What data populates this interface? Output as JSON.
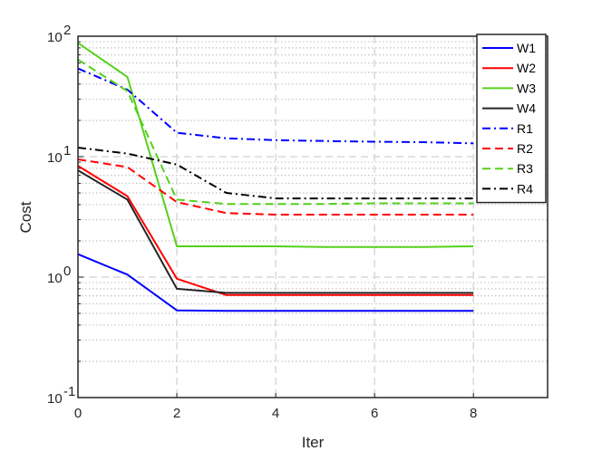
{
  "chart_data": {
    "type": "line",
    "title": "",
    "xlabel": "Iter",
    "ylabel": "Cost",
    "xlim": [
      0,
      9.5
    ],
    "ylim": [
      0.1,
      100
    ],
    "yscale": "log",
    "grid": true,
    "legend_position": "top-right",
    "xticks": [
      0,
      2,
      4,
      6,
      8
    ],
    "xtick_labels": [
      "0",
      "2",
      "4",
      "6",
      "8"
    ],
    "yticks": [
      0.1,
      1,
      10,
      100
    ],
    "ytick_labels": [
      {
        "base": "10",
        "exp": "-1"
      },
      {
        "base": "10",
        "exp": "0"
      },
      {
        "base": "10",
        "exp": "1"
      },
      {
        "base": "10",
        "exp": "2"
      }
    ],
    "x": [
      0,
      1,
      2,
      3,
      4,
      5,
      6,
      7,
      8
    ],
    "series": [
      {
        "name": "W1",
        "color": "#0000ff",
        "style": "solid",
        "values": [
          1.55,
          1.05,
          0.53,
          0.525,
          0.525,
          0.525,
          0.525,
          0.525,
          0.525
        ]
      },
      {
        "name": "W2",
        "color": "#ff0000",
        "style": "solid",
        "values": [
          8.4,
          4.7,
          0.97,
          0.71,
          0.71,
          0.71,
          0.71,
          0.71,
          0.71
        ]
      },
      {
        "name": "W3",
        "color": "#55d01a",
        "style": "solid",
        "values": [
          88,
          46,
          1.8,
          1.8,
          1.8,
          1.78,
          1.78,
          1.78,
          1.8
        ]
      },
      {
        "name": "W4",
        "color": "#262626",
        "style": "solid",
        "values": [
          7.7,
          4.4,
          0.8,
          0.74,
          0.74,
          0.74,
          0.74,
          0.74,
          0.74
        ]
      },
      {
        "name": "R1",
        "color": "#0000ff",
        "style": "dashdot",
        "values": [
          54,
          36,
          15.8,
          14.2,
          13.7,
          13.5,
          13.3,
          13.2,
          12.9
        ]
      },
      {
        "name": "R2",
        "color": "#ff0000",
        "style": "dashed",
        "values": [
          9.5,
          8.2,
          4.2,
          3.4,
          3.3,
          3.3,
          3.3,
          3.3,
          3.3
        ]
      },
      {
        "name": "R3",
        "color": "#55d01a",
        "style": "dashed",
        "values": [
          64,
          35,
          4.4,
          4.05,
          4.05,
          4.05,
          4.1,
          4.1,
          4.1
        ]
      },
      {
        "name": "R4",
        "color": "#000000",
        "style": "dashdot",
        "values": [
          11.9,
          10.6,
          8.6,
          5.0,
          4.5,
          4.5,
          4.5,
          4.5,
          4.5
        ]
      }
    ]
  }
}
